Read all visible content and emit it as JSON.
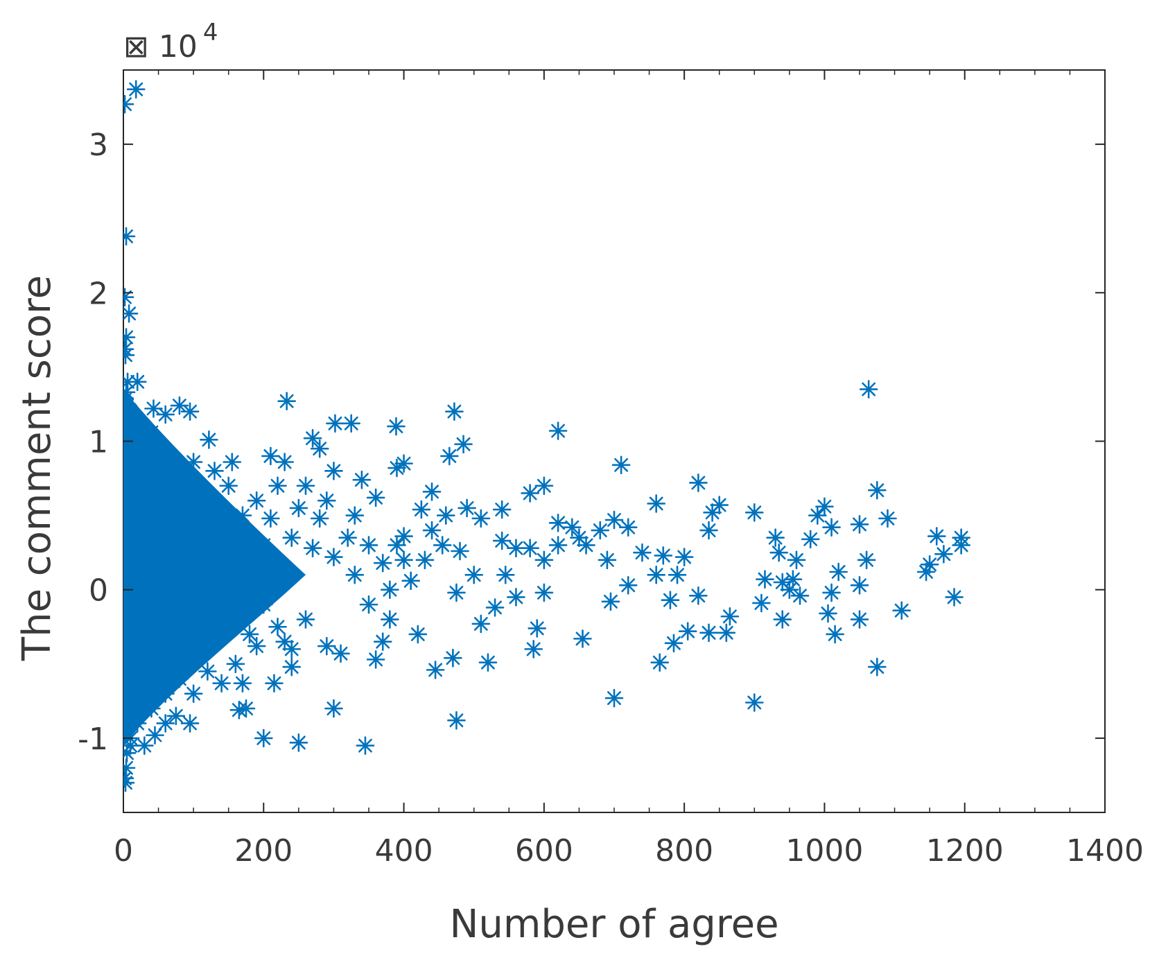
{
  "chart_data": {
    "type": "scatter",
    "title": "",
    "xlabel": "Number of agree",
    "ylabel": "The comment score",
    "xlim": [
      0,
      1400
    ],
    "ylim": [
      -1.5,
      3.5
    ],
    "y_multiplier": "⊠ 10",
    "y_multiplier_exp": "4",
    "x_ticks": [
      "0",
      "200",
      "400",
      "600",
      "800",
      "1000",
      "1200",
      "1400"
    ],
    "y_ticks": [
      "-1",
      "0",
      "1",
      "2",
      "3"
    ],
    "marker": "asterisk",
    "color": "#0072BD",
    "grid": false,
    "points": [
      [
        2,
        3.27
      ],
      [
        18,
        3.37
      ],
      [
        4,
        2.38
      ],
      [
        2,
        1.97
      ],
      [
        8,
        1.86
      ],
      [
        4,
        1.7
      ],
      [
        2,
        1.62
      ],
      [
        3,
        1.58
      ],
      [
        4,
        1.33
      ],
      [
        6,
        1.4
      ],
      [
        20,
        1.4
      ],
      [
        2,
        1.28
      ],
      [
        5,
        1.25
      ],
      [
        43,
        1.22
      ],
      [
        80,
        1.24
      ],
      [
        95,
        1.2
      ],
      [
        60,
        1.18
      ],
      [
        40,
        1.06
      ],
      [
        122,
        1.01
      ],
      [
        233,
        1.27
      ],
      [
        302,
        1.12
      ],
      [
        325,
        1.12
      ],
      [
        389,
        1.1
      ],
      [
        472,
        1.2
      ],
      [
        485,
        0.98
      ],
      [
        465,
        0.9
      ],
      [
        270,
        1.02
      ],
      [
        280,
        0.95
      ],
      [
        620,
        1.07
      ],
      [
        1063,
        1.35
      ],
      [
        710,
        0.84
      ],
      [
        820,
        0.72
      ],
      [
        1075,
        0.67
      ],
      [
        100,
        0.86
      ],
      [
        155,
        0.86
      ],
      [
        210,
        0.9
      ],
      [
        230,
        0.86
      ],
      [
        390,
        0.82
      ],
      [
        400,
        0.85
      ],
      [
        300,
        0.8
      ],
      [
        340,
        0.74
      ],
      [
        360,
        0.62
      ],
      [
        440,
        0.66
      ],
      [
        460,
        0.5
      ],
      [
        540,
        0.54
      ],
      [
        580,
        0.65
      ],
      [
        600,
        0.7
      ],
      [
        760,
        0.58
      ],
      [
        850,
        0.57
      ],
      [
        900,
        0.52
      ],
      [
        1000,
        0.56
      ],
      [
        990,
        0.5
      ],
      [
        1090,
        0.48
      ],
      [
        1050,
        0.44
      ],
      [
        1010,
        0.42
      ],
      [
        980,
        0.34
      ],
      [
        1160,
        0.36
      ],
      [
        1195,
        0.35
      ],
      [
        1195,
        0.3
      ],
      [
        1170,
        0.24
      ],
      [
        1150,
        0.17
      ],
      [
        1145,
        0.12
      ],
      [
        1185,
        -0.05
      ],
      [
        1110,
        -0.14
      ],
      [
        1050,
        0.03
      ],
      [
        1060,
        0.2
      ],
      [
        1020,
        0.12
      ],
      [
        1010,
        -0.02
      ],
      [
        1005,
        -0.16
      ],
      [
        1015,
        -0.3
      ],
      [
        1050,
        -0.2
      ],
      [
        1075,
        -0.52
      ],
      [
        960,
        0.2
      ],
      [
        955,
        0.07
      ],
      [
        950,
        0.0
      ],
      [
        940,
        0.05
      ],
      [
        965,
        -0.04
      ],
      [
        915,
        0.07
      ],
      [
        910,
        -0.09
      ],
      [
        940,
        -0.2
      ],
      [
        900,
        -0.76
      ],
      [
        930,
        0.35
      ],
      [
        935,
        0.25
      ],
      [
        840,
        0.52
      ],
      [
        835,
        0.4
      ],
      [
        820,
        -0.04
      ],
      [
        800,
        0.22
      ],
      [
        790,
        0.1
      ],
      [
        780,
        -0.07
      ],
      [
        770,
        0.23
      ],
      [
        760,
        0.1
      ],
      [
        785,
        -0.36
      ],
      [
        765,
        -0.49
      ],
      [
        805,
        -0.28
      ],
      [
        835,
        -0.29
      ],
      [
        865,
        -0.18
      ],
      [
        860,
        -0.29
      ],
      [
        740,
        0.25
      ],
      [
        720,
        0.03
      ],
      [
        700,
        0.47
      ],
      [
        690,
        0.2
      ],
      [
        695,
        -0.08
      ],
      [
        700,
        -0.73
      ],
      [
        655,
        -0.33
      ],
      [
        640,
        0.42
      ],
      [
        620,
        0.3
      ],
      [
        600,
        0.2
      ],
      [
        580,
        0.28
      ],
      [
        585,
        -0.4
      ],
      [
        590,
        -0.26
      ],
      [
        560,
        0.28
      ],
      [
        545,
        0.1
      ],
      [
        530,
        -0.12
      ],
      [
        500,
        0.1
      ],
      [
        510,
        -0.23
      ],
      [
        520,
        -0.49
      ],
      [
        480,
        0.26
      ],
      [
        475,
        -0.02
      ],
      [
        470,
        -0.46
      ],
      [
        475,
        -0.88
      ],
      [
        445,
        -0.54
      ],
      [
        430,
        0.2
      ],
      [
        420,
        -0.3
      ],
      [
        425,
        0.54
      ],
      [
        400,
        0.2
      ],
      [
        380,
        0.0
      ],
      [
        370,
        -0.35
      ],
      [
        360,
        -0.47
      ],
      [
        345,
        -1.05
      ],
      [
        350,
        0.3
      ],
      [
        330,
        0.1
      ],
      [
        310,
        -0.43
      ],
      [
        300,
        -0.8
      ],
      [
        290,
        -0.38
      ],
      [
        270,
        0.28
      ],
      [
        250,
        -1.03
      ],
      [
        240,
        -0.52
      ],
      [
        230,
        -0.35
      ],
      [
        215,
        -0.63
      ],
      [
        200,
        -1.0
      ],
      [
        190,
        -0.38
      ],
      [
        175,
        -0.8
      ],
      [
        170,
        -0.63
      ],
      [
        165,
        -0.81
      ],
      [
        140,
        -0.63
      ],
      [
        100,
        -0.7
      ],
      [
        95,
        -0.9
      ],
      [
        75,
        -0.85
      ],
      [
        60,
        -0.9
      ],
      [
        45,
        -0.98
      ],
      [
        30,
        -1.05
      ],
      [
        10,
        -1.05
      ],
      [
        5,
        -1.1
      ],
      [
        4,
        -1.2
      ],
      [
        2,
        -1.27
      ],
      [
        3,
        -1.3
      ],
      [
        620,
        0.45
      ],
      [
        650,
        0.35
      ],
      [
        680,
        0.4
      ],
      [
        720,
        0.42
      ],
      [
        660,
        0.3
      ],
      [
        600,
        -0.02
      ],
      [
        560,
        -0.05
      ],
      [
        540,
        0.33
      ],
      [
        510,
        0.48
      ],
      [
        490,
        0.55
      ],
      [
        455,
        0.3
      ],
      [
        440,
        0.4
      ],
      [
        410,
        0.06
      ],
      [
        400,
        0.36
      ],
      [
        390,
        0.3
      ],
      [
        380,
        -0.2
      ],
      [
        370,
        0.18
      ],
      [
        350,
        -0.1
      ],
      [
        330,
        0.5
      ],
      [
        320,
        0.35
      ],
      [
        300,
        0.22
      ],
      [
        290,
        0.6
      ],
      [
        280,
        0.48
      ],
      [
        260,
        0.7
      ],
      [
        250,
        0.55
      ],
      [
        240,
        0.35
      ],
      [
        230,
        0.12
      ],
      [
        220,
        0.7
      ],
      [
        210,
        0.48
      ],
      [
        200,
        0.3
      ],
      [
        190,
        0.6
      ],
      [
        180,
        0.1
      ],
      [
        170,
        0.5
      ],
      [
        160,
        0.28
      ],
      [
        150,
        0.7
      ],
      [
        140,
        0.2
      ],
      [
        130,
        0.8
      ],
      [
        120,
        0.4
      ],
      [
        110,
        0.65
      ],
      [
        100,
        0.55
      ],
      [
        90,
        0.3
      ],
      [
        80,
        0.7
      ],
      [
        70,
        0.85
      ],
      [
        60,
        0.5
      ],
      [
        50,
        0.95
      ],
      [
        40,
        0.6
      ],
      [
        30,
        1.0
      ],
      [
        20,
        0.9
      ],
      [
        15,
        1.1
      ],
      [
        10,
        1.2
      ],
      [
        260,
        -0.2
      ],
      [
        240,
        -0.4
      ],
      [
        220,
        -0.25
      ],
      [
        200,
        -0.1
      ],
      [
        180,
        -0.3
      ],
      [
        160,
        -0.5
      ],
      [
        150,
        -0.2
      ],
      [
        130,
        -0.35
      ],
      [
        120,
        -0.55
      ],
      [
        110,
        -0.2
      ],
      [
        90,
        -0.45
      ],
      [
        80,
        -0.6
      ],
      [
        70,
        -0.3
      ],
      [
        60,
        -0.7
      ],
      [
        50,
        -0.5
      ],
      [
        40,
        -0.8
      ],
      [
        30,
        -0.4
      ],
      [
        20,
        -0.9
      ],
      [
        15,
        -0.6
      ],
      [
        10,
        -1.0
      ]
    ]
  }
}
